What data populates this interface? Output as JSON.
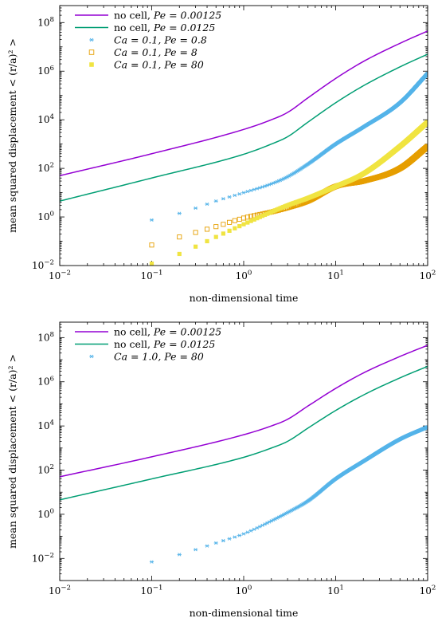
{
  "colors": {
    "purple": "#9400d3",
    "teal": "#009e73",
    "skyblue": "#56b4e9",
    "orange": "#e69f00",
    "yellow": "#f0e442"
  },
  "chart_data": [
    {
      "type": "scatter",
      "xscale": "log",
      "yscale": "log",
      "xlim": [
        0.01,
        100
      ],
      "ylim": [
        0.01,
        500000000
      ],
      "xlabel": "non-dimensional time",
      "ylabel": "mean squared displacement < (r/a)² >",
      "legend_position": "top-left",
      "grid": false,
      "x_ticks": [
        {
          "value": 0.01,
          "mant": "10",
          "exp": "−2"
        },
        {
          "value": 0.1,
          "mant": "10",
          "exp": "−1"
        },
        {
          "value": 1,
          "mant": "10",
          "exp": "0"
        },
        {
          "value": 10,
          "mant": "10",
          "exp": "1"
        },
        {
          "value": 100,
          "mant": "10",
          "exp": "2"
        }
      ],
      "y_ticks": [
        {
          "value": 0.01,
          "mant": "10",
          "exp": "−2"
        },
        {
          "value": 1,
          "mant": "10",
          "exp": "0"
        },
        {
          "value": 100,
          "mant": "10",
          "exp": "2"
        },
        {
          "value": 10000,
          "mant": "10",
          "exp": "4"
        },
        {
          "value": 1000000,
          "mant": "10",
          "exp": "6"
        },
        {
          "value": 100000000,
          "mant": "10",
          "exp": "8"
        }
      ],
      "series": [
        {
          "name": "no cell, Pe = 0.00125",
          "legend_label": "no cell, ",
          "legend_math": "Pe = 0.00125",
          "kind": "line",
          "color": "#9400d3",
          "x": [
            0.01,
            0.1,
            1,
            2,
            3,
            5,
            10,
            20,
            50,
            100
          ],
          "y": [
            50,
            400,
            4000,
            10000,
            20000,
            80000,
            500000,
            2500000,
            14000000,
            45000000
          ]
        },
        {
          "name": "no cell, Pe = 0.0125",
          "legend_label": "no cell, ",
          "legend_math": "Pe = 0.0125",
          "kind": "line",
          "color": "#009e73",
          "x": [
            0.01,
            0.1,
            1,
            2,
            3,
            5,
            10,
            20,
            50,
            100
          ],
          "y": [
            4.5,
            40,
            380,
            1000,
            2000,
            8000,
            50000,
            250000,
            1500000,
            5000000
          ]
        },
        {
          "name": "Ca = 0.1, Pe = 0.8",
          "legend_label": "",
          "legend_math": "Ca = 0.1, Pe = 0.8",
          "kind": "scatter",
          "marker": "asterisk",
          "color": "#56b4e9",
          "x": [
            0.1,
            0.2,
            0.3,
            0.5,
            1,
            2,
            3,
            5,
            10,
            20,
            50,
            100
          ],
          "y": [
            0.75,
            1.4,
            2.3,
            4.5,
            10,
            23,
            45,
            150,
            1000,
            5000,
            50000,
            800000
          ]
        },
        {
          "name": "Ca = 0.1, Pe = 8",
          "legend_label": "",
          "legend_math": "Ca = 0.1, Pe = 8",
          "kind": "scatter",
          "marker": "open-square",
          "color": "#e69f00",
          "x": [
            0.1,
            0.2,
            0.3,
            0.5,
            1,
            2,
            3,
            5,
            10,
            20,
            50,
            100
          ],
          "y": [
            0.07,
            0.15,
            0.23,
            0.4,
            0.9,
            1.6,
            2.4,
            4.5,
            18,
            30,
            100,
            800
          ]
        },
        {
          "name": "Ca = 0.1, Pe = 80",
          "legend_label": "",
          "legend_math": "Ca = 0.1, Pe = 80",
          "kind": "scatter",
          "marker": "filled-square",
          "color": "#f0e442",
          "x": [
            0.1,
            0.2,
            0.3,
            0.5,
            1,
            2,
            3,
            5,
            10,
            20,
            50,
            100
          ],
          "y": [
            0.012,
            0.03,
            0.06,
            0.15,
            0.5,
            1.6,
            3,
            6,
            18,
            60,
            800,
            8000
          ]
        }
      ]
    },
    {
      "type": "scatter",
      "xscale": "log",
      "yscale": "log",
      "xlim": [
        0.01,
        100
      ],
      "ylim": [
        0.001,
        500000000
      ],
      "xlabel": "non-dimensional time",
      "ylabel": "mean squared displacement < (r/a)² >",
      "legend_position": "top-left",
      "grid": false,
      "x_ticks": [
        {
          "value": 0.01,
          "mant": "10",
          "exp": "−2"
        },
        {
          "value": 0.1,
          "mant": "10",
          "exp": "−1"
        },
        {
          "value": 1,
          "mant": "10",
          "exp": "0"
        },
        {
          "value": 10,
          "mant": "10",
          "exp": "1"
        },
        {
          "value": 100,
          "mant": "10",
          "exp": "2"
        }
      ],
      "y_ticks": [
        {
          "value": 0.01,
          "mant": "10",
          "exp": "−2"
        },
        {
          "value": 1,
          "mant": "10",
          "exp": "0"
        },
        {
          "value": 100,
          "mant": "10",
          "exp": "2"
        },
        {
          "value": 10000,
          "mant": "10",
          "exp": "4"
        },
        {
          "value": 1000000,
          "mant": "10",
          "exp": "6"
        },
        {
          "value": 100000000,
          "mant": "10",
          "exp": "8"
        }
      ],
      "series": [
        {
          "name": "no cell, Pe = 0.00125",
          "legend_label": "no cell, ",
          "legend_math": "Pe = 0.00125",
          "kind": "line",
          "color": "#9400d3",
          "x": [
            0.01,
            0.1,
            1,
            2,
            3,
            5,
            10,
            20,
            50,
            100
          ],
          "y": [
            50,
            400,
            4000,
            10000,
            20000,
            80000,
            500000,
            2500000,
            14000000,
            45000000
          ]
        },
        {
          "name": "no cell, Pe = 0.0125",
          "legend_label": "no cell, ",
          "legend_math": "Pe = 0.0125",
          "kind": "line",
          "color": "#009e73",
          "x": [
            0.01,
            0.1,
            1,
            2,
            3,
            5,
            10,
            20,
            50,
            100
          ],
          "y": [
            4.5,
            40,
            380,
            1000,
            2000,
            8000,
            50000,
            250000,
            1500000,
            5000000
          ]
        },
        {
          "name": "Ca = 1.0, Pe = 80",
          "legend_label": "",
          "legend_math": "Ca = 1.0, Pe = 80",
          "kind": "scatter",
          "marker": "asterisk",
          "color": "#56b4e9",
          "x": [
            0.1,
            0.2,
            0.3,
            0.5,
            1,
            2,
            3,
            5,
            10,
            20,
            50,
            100
          ],
          "y": [
            0.007,
            0.015,
            0.025,
            0.05,
            0.13,
            0.5,
            1.2,
            4,
            40,
            250,
            2500,
            9000
          ]
        }
      ]
    }
  ]
}
